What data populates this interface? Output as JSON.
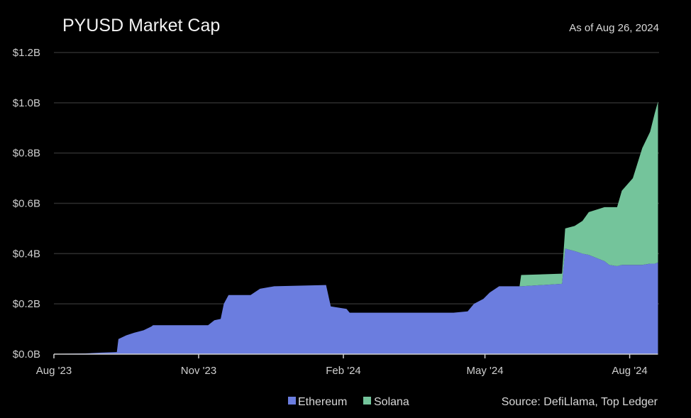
{
  "chart_data": {
    "type": "area",
    "stacked": true,
    "title": "PYUSD Market Cap",
    "subtitle": "As of Aug 26, 2024",
    "source": "Source: DefiLlama, Top Ledger",
    "xlabel": "",
    "ylabel": "",
    "x_unit": "days since Aug 1, 2023",
    "xlim": [
      0,
      390
    ],
    "ylim": [
      0,
      1.2
    ],
    "y_ticks": [
      0,
      0.2,
      0.4,
      0.6,
      0.8,
      1.0,
      1.2
    ],
    "y_tick_labels": [
      "$0.0B",
      "$0.2B",
      "$0.4B",
      "$0.6B",
      "$0.8B",
      "$1.0B",
      "$1.2B"
    ],
    "x_ticks": [
      0,
      92,
      184,
      274,
      366
    ],
    "x_tick_labels": [
      "Aug '23",
      "Nov '23",
      "Feb '24",
      "May '24",
      "Aug '24"
    ],
    "grid": true,
    "legend_position": "bottom",
    "x": [
      0,
      20,
      30,
      40,
      41,
      46,
      51,
      57,
      62,
      63,
      98,
      102,
      106,
      108,
      111,
      125,
      131,
      140,
      173,
      176,
      186,
      188,
      254,
      263,
      267,
      273,
      277,
      283,
      296,
      297,
      323,
      325,
      331,
      336,
      340,
      350,
      353,
      358,
      361,
      368,
      374,
      379,
      382,
      384
    ],
    "series": [
      {
        "name": "Ethereum",
        "color": "#6b7ddf",
        "values": [
          0.001,
          0.003,
          0.006,
          0.008,
          0.06,
          0.075,
          0.085,
          0.095,
          0.11,
          0.115,
          0.115,
          0.135,
          0.14,
          0.2,
          0.235,
          0.235,
          0.26,
          0.27,
          0.275,
          0.19,
          0.18,
          0.165,
          0.165,
          0.17,
          0.2,
          0.22,
          0.245,
          0.27,
          0.27,
          0.27,
          0.28,
          0.42,
          0.41,
          0.4,
          0.395,
          0.37,
          0.355,
          0.35,
          0.355,
          0.355,
          0.355,
          0.36,
          0.36,
          0.365
        ]
      },
      {
        "name": "Solana",
        "color": "#74c49b",
        "values": [
          0,
          0,
          0,
          0,
          0,
          0,
          0,
          0,
          0,
          0,
          0,
          0,
          0,
          0,
          0,
          0,
          0,
          0,
          0,
          0,
          0,
          0,
          0,
          0,
          0,
          0,
          0,
          0,
          0,
          0.045,
          0.04,
          0.08,
          0.1,
          0.13,
          0.17,
          0.215,
          0.23,
          0.235,
          0.295,
          0.345,
          0.465,
          0.525,
          0.6,
          0.64
        ]
      }
    ]
  }
}
